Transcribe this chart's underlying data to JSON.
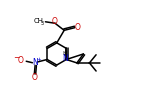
{
  "bg_color": "#ffffff",
  "bond_color": "#000000",
  "o_color": "#cc0000",
  "n_color": "#0000cc",
  "line_width": 1.1,
  "figsize": [
    1.49,
    1.02
  ],
  "dpi": 100,
  "xlim": [
    0,
    10
  ],
  "ylim": [
    0,
    6.8
  ]
}
